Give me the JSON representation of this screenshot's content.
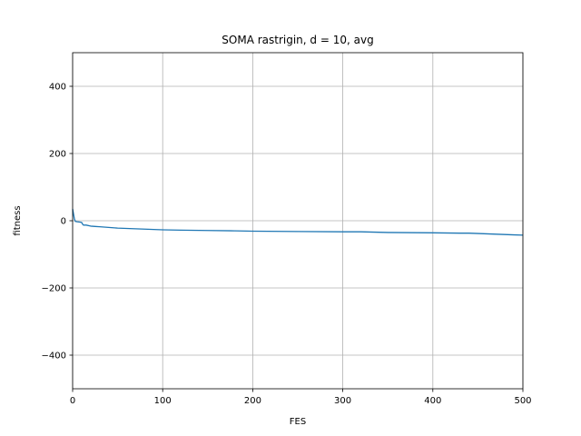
{
  "chart_data": {
    "type": "line",
    "title": "SOMA rastrigin, d = 10, avg",
    "xlabel": "FES",
    "ylabel": "fitness",
    "xlim": [
      0,
      500
    ],
    "ylim": [
      -500,
      500
    ],
    "xticks": [
      0,
      100,
      200,
      300,
      400,
      500
    ],
    "xtick_labels": [
      "0",
      "100",
      "200",
      "300",
      "400",
      "500"
    ],
    "yticks": [
      -400,
      -200,
      0,
      200,
      400
    ],
    "ytick_labels": [
      "−400",
      "−200",
      "0",
      "200",
      "400"
    ],
    "grid": true,
    "colors": {
      "line": "#1f77b4",
      "grid": "#b0b0b0",
      "axes": "#000000"
    },
    "series": [
      {
        "x": [
          0,
          1,
          2,
          3,
          5,
          8,
          10,
          11,
          12,
          15,
          20,
          25,
          30,
          40,
          50,
          60,
          70,
          80,
          90,
          100,
          120,
          150,
          180,
          200,
          250,
          300,
          320,
          350,
          400,
          430,
          440,
          450,
          460,
          470,
          480,
          490,
          500
        ],
        "y": [
          35,
          20,
          5,
          -2,
          -3,
          -4,
          -5,
          -10,
          -13,
          -13,
          -16,
          -17,
          -18,
          -20,
          -22,
          -23,
          -24,
          -25,
          -26,
          -27,
          -28,
          -29,
          -30,
          -31,
          -32,
          -33,
          -33,
          -35,
          -36,
          -37,
          -37,
          -38,
          -39,
          -40,
          -41,
          -42,
          -43
        ]
      }
    ]
  }
}
